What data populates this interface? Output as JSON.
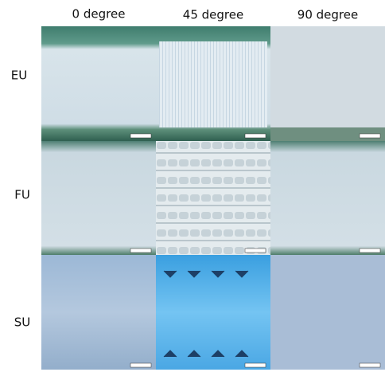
{
  "columns": [
    "0 degree",
    "45 degree",
    "90 degree"
  ],
  "rows": [
    "EU",
    "FU",
    "SU"
  ]
}
